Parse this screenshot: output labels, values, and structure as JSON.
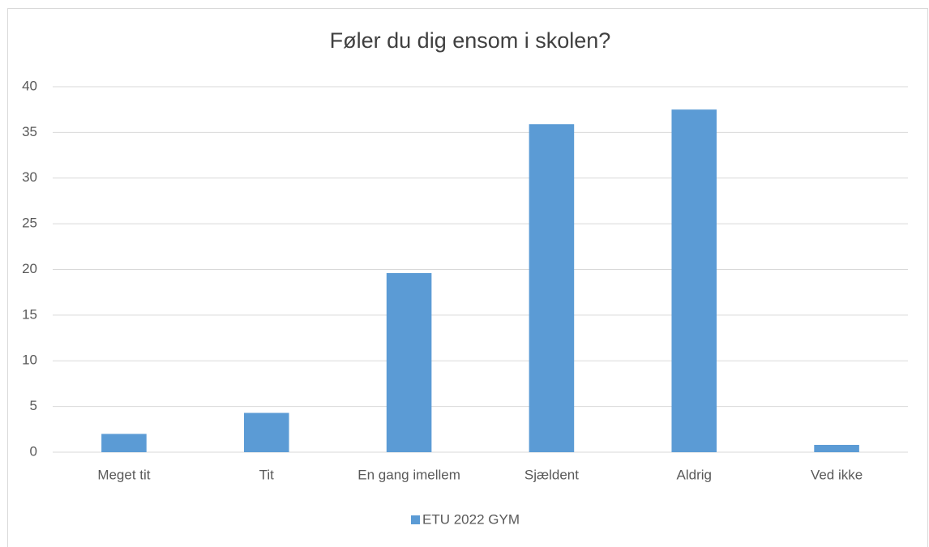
{
  "chart_data": {
    "type": "bar",
    "title": "Føler du dig ensom i skolen?",
    "categories": [
      "Meget tit",
      "Tit",
      "En gang imellem",
      "Sjældent",
      "Aldrig",
      "Ved ikke"
    ],
    "series": [
      {
        "name": "ETU 2022 GYM",
        "color": "#5b9bd5",
        "values": [
          2.0,
          4.3,
          19.6,
          35.9,
          37.5,
          0.8
        ]
      }
    ],
    "ylim": [
      0,
      40
    ],
    "yticks": [
      0,
      5,
      10,
      15,
      20,
      25,
      30,
      35,
      40
    ],
    "grid": true,
    "legend": "bottom"
  }
}
